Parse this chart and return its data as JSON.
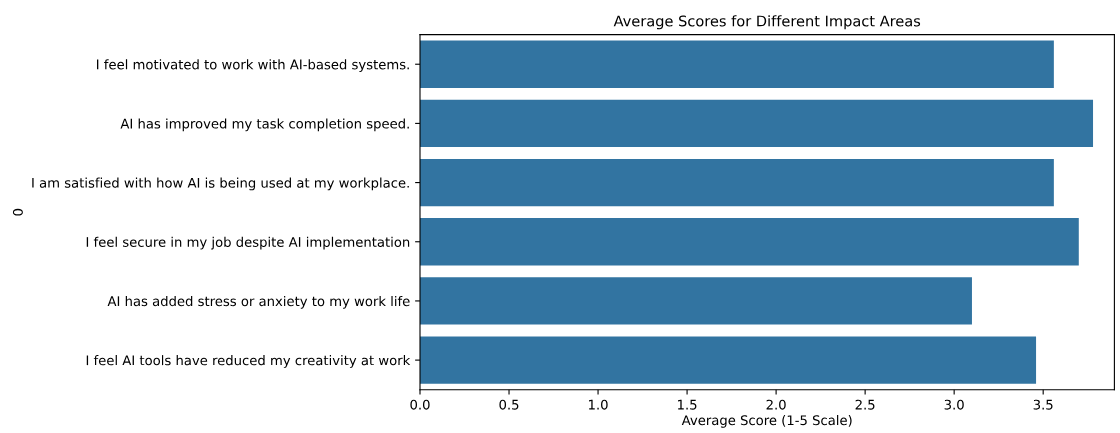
{
  "chart_data": {
    "type": "bar",
    "orientation": "horizontal",
    "title": "Average Scores for Different Impact Areas",
    "xlabel": "Average Score (1-5 Scale)",
    "ylabel": "0",
    "categories": [
      "I feel motivated to work with AI-based systems.",
      "AI has improved my task completion speed.",
      "I am satisfied with how AI is being used at my workplace.",
      "I feel secure in my job despite AI implementation",
      "AI has added stress or anxiety to my work life",
      "I feel AI tools have reduced my creativity at work"
    ],
    "values": [
      3.56,
      3.78,
      3.56,
      3.7,
      3.1,
      3.46
    ],
    "color": "#3274a1",
    "xlim": [
      0,
      3.9
    ],
    "xticks": [
      {
        "value": 0,
        "label": "0.0"
      },
      0.5,
      {
        "value": 1,
        "label": "1.0"
      },
      1.5,
      {
        "value": 2,
        "label": "2.0"
      },
      2.5,
      {
        "value": 3,
        "label": "3.0"
      },
      3.5
    ],
    "grid": false,
    "legend": false
  }
}
